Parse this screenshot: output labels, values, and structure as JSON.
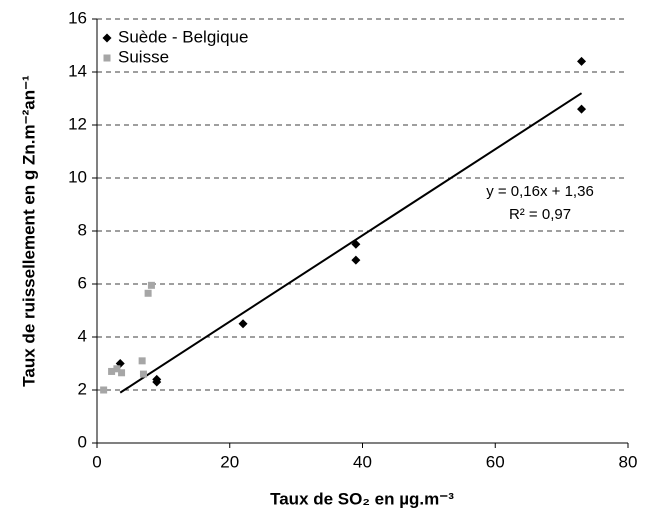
{
  "chart_data": {
    "type": "scatter",
    "xlabel": "Taux de SO₂ en µg.m⁻³",
    "ylabel": "Taux de ruissellement en g Zn.m⁻²an⁻¹",
    "xlim": [
      0,
      80
    ],
    "xticks": [
      0,
      20,
      40,
      60,
      80
    ],
    "ylim": [
      0,
      16
    ],
    "yticks": [
      0,
      2,
      4,
      6,
      8,
      10,
      12,
      14,
      16
    ],
    "grid": true,
    "legend": "top-left",
    "series": [
      {
        "name": "Suède - Belgique",
        "color": "#000000",
        "marker": "diamond",
        "x": [
          3.5,
          9,
          9,
          22,
          39,
          39,
          73,
          73
        ],
        "values": [
          3.0,
          2.4,
          2.3,
          4.5,
          7.5,
          6.9,
          14.4,
          12.6
        ]
      },
      {
        "name": "Suisse",
        "color": "#a6a6a6",
        "marker": "square",
        "x": [
          1,
          2.2,
          3,
          3.7,
          6.8,
          7,
          7.7,
          8.2
        ],
        "values": [
          2.0,
          2.7,
          2.8,
          2.65,
          3.1,
          2.6,
          5.65,
          5.95
        ]
      }
    ],
    "trendline": {
      "x": [
        3.5,
        73
      ],
      "values": [
        1.9,
        13.2
      ],
      "color": "#000000"
    },
    "annotations": [
      "y = 0,16x + 1,36",
      "R² = 0,97"
    ]
  }
}
